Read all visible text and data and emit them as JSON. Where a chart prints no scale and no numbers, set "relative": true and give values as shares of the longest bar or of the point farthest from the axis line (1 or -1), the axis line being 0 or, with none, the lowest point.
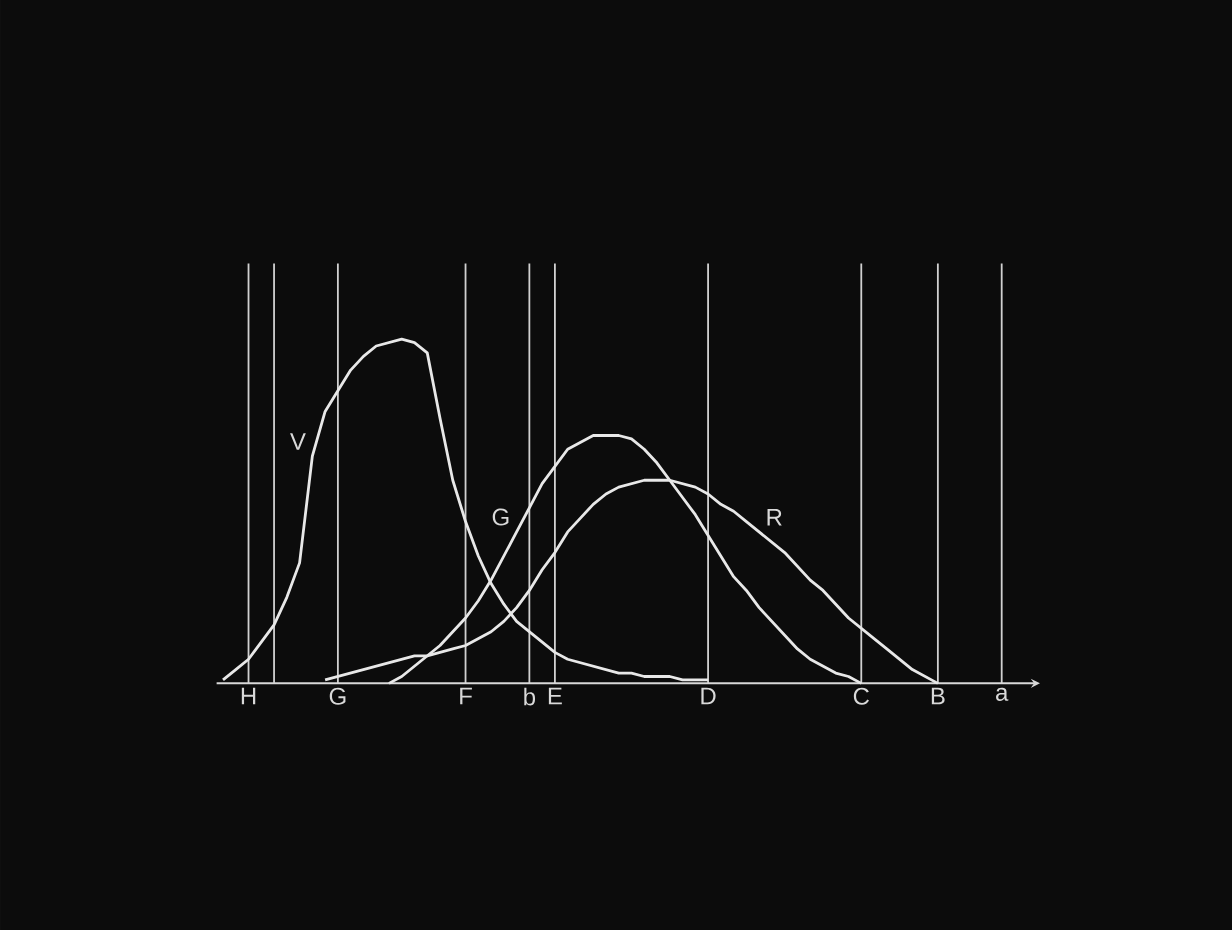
{
  "chart_data": {
    "type": "line",
    "relative": true,
    "grid": "x",
    "categories": [
      null,
      null,
      null,
      "H",
      null,
      null,
      null,
      null,
      null,
      null,
      "G",
      null,
      null,
      null,
      null,
      null,
      null,
      null,
      null,
      null,
      "F",
      null,
      null,
      null,
      null,
      "b",
      null,
      "E",
      null,
      null,
      null,
      null,
      null,
      null,
      null,
      null,
      null,
      null,
      null,
      "D",
      null,
      null,
      null,
      null,
      null,
      null,
      null,
      null,
      null,
      null,
      null,
      "C",
      null,
      null,
      null,
      null,
      null,
      "B",
      null,
      null,
      null,
      null,
      "a",
      null,
      null,
      null
    ],
    "series": [
      {
        "name": "V",
        "color": "#e8e8e8",
        "values": [
          null,
          0.01,
          0.04,
          0.07,
          0.12,
          0.17,
          0.25,
          0.35,
          0.66,
          0.79,
          0.85,
          0.91,
          0.95,
          0.98,
          0.99,
          1.0,
          0.99,
          0.96,
          0.77,
          0.59,
          0.47,
          0.37,
          0.29,
          0.23,
          0.18,
          0.15,
          0.12,
          0.09,
          0.07,
          0.06,
          0.05,
          0.04,
          0.03,
          0.03,
          0.02,
          0.02,
          0.02,
          0.01,
          0.01,
          0.01,
          null,
          null,
          null,
          null,
          null,
          null,
          null,
          null,
          null,
          null,
          null,
          null,
          null,
          null,
          null,
          null,
          null,
          null,
          null,
          null,
          null,
          null,
          null,
          null,
          null,
          null
        ]
      },
      {
        "name": "G",
        "color": "#e8e8e8",
        "values": [
          null,
          null,
          null,
          null,
          null,
          null,
          null,
          null,
          null,
          null,
          null,
          null,
          null,
          null,
          0,
          0.02,
          0.05,
          0.08,
          0.11,
          0.15,
          0.19,
          0.24,
          0.3,
          0.37,
          0.44,
          0.51,
          0.58,
          0.63,
          0.68,
          0.7,
          0.72,
          0.72,
          0.72,
          0.71,
          0.68,
          0.64,
          0.59,
          0.54,
          0.49,
          0.43,
          0.37,
          0.31,
          0.27,
          0.22,
          0.18,
          0.14,
          0.1,
          0.07,
          0.05,
          0.03,
          0.02,
          0,
          null,
          null,
          null,
          null,
          null,
          null,
          null,
          null,
          null,
          null,
          null,
          null,
          null,
          null
        ]
      },
      {
        "name": "R",
        "color": "#e8e8e8",
        "values": [
          null,
          null,
          null,
          null,
          null,
          null,
          null,
          null,
          null,
          0.01,
          0.02,
          0.03,
          0.04,
          0.05,
          0.06,
          0.07,
          0.08,
          0.08,
          0.09,
          0.1,
          0.11,
          0.13,
          0.15,
          0.18,
          0.22,
          0.27,
          0.33,
          0.38,
          0.44,
          0.48,
          0.52,
          0.55,
          0.57,
          0.58,
          0.59,
          0.59,
          0.59,
          0.58,
          0.57,
          0.55,
          0.52,
          0.5,
          0.47,
          0.44,
          0.41,
          0.38,
          0.34,
          0.3,
          0.27,
          0.23,
          0.19,
          0.16,
          0.13,
          0.1,
          0.07,
          0.04,
          0.02,
          0,
          null,
          null,
          null,
          null,
          null,
          null,
          null,
          null
        ]
      }
    ]
  }
}
